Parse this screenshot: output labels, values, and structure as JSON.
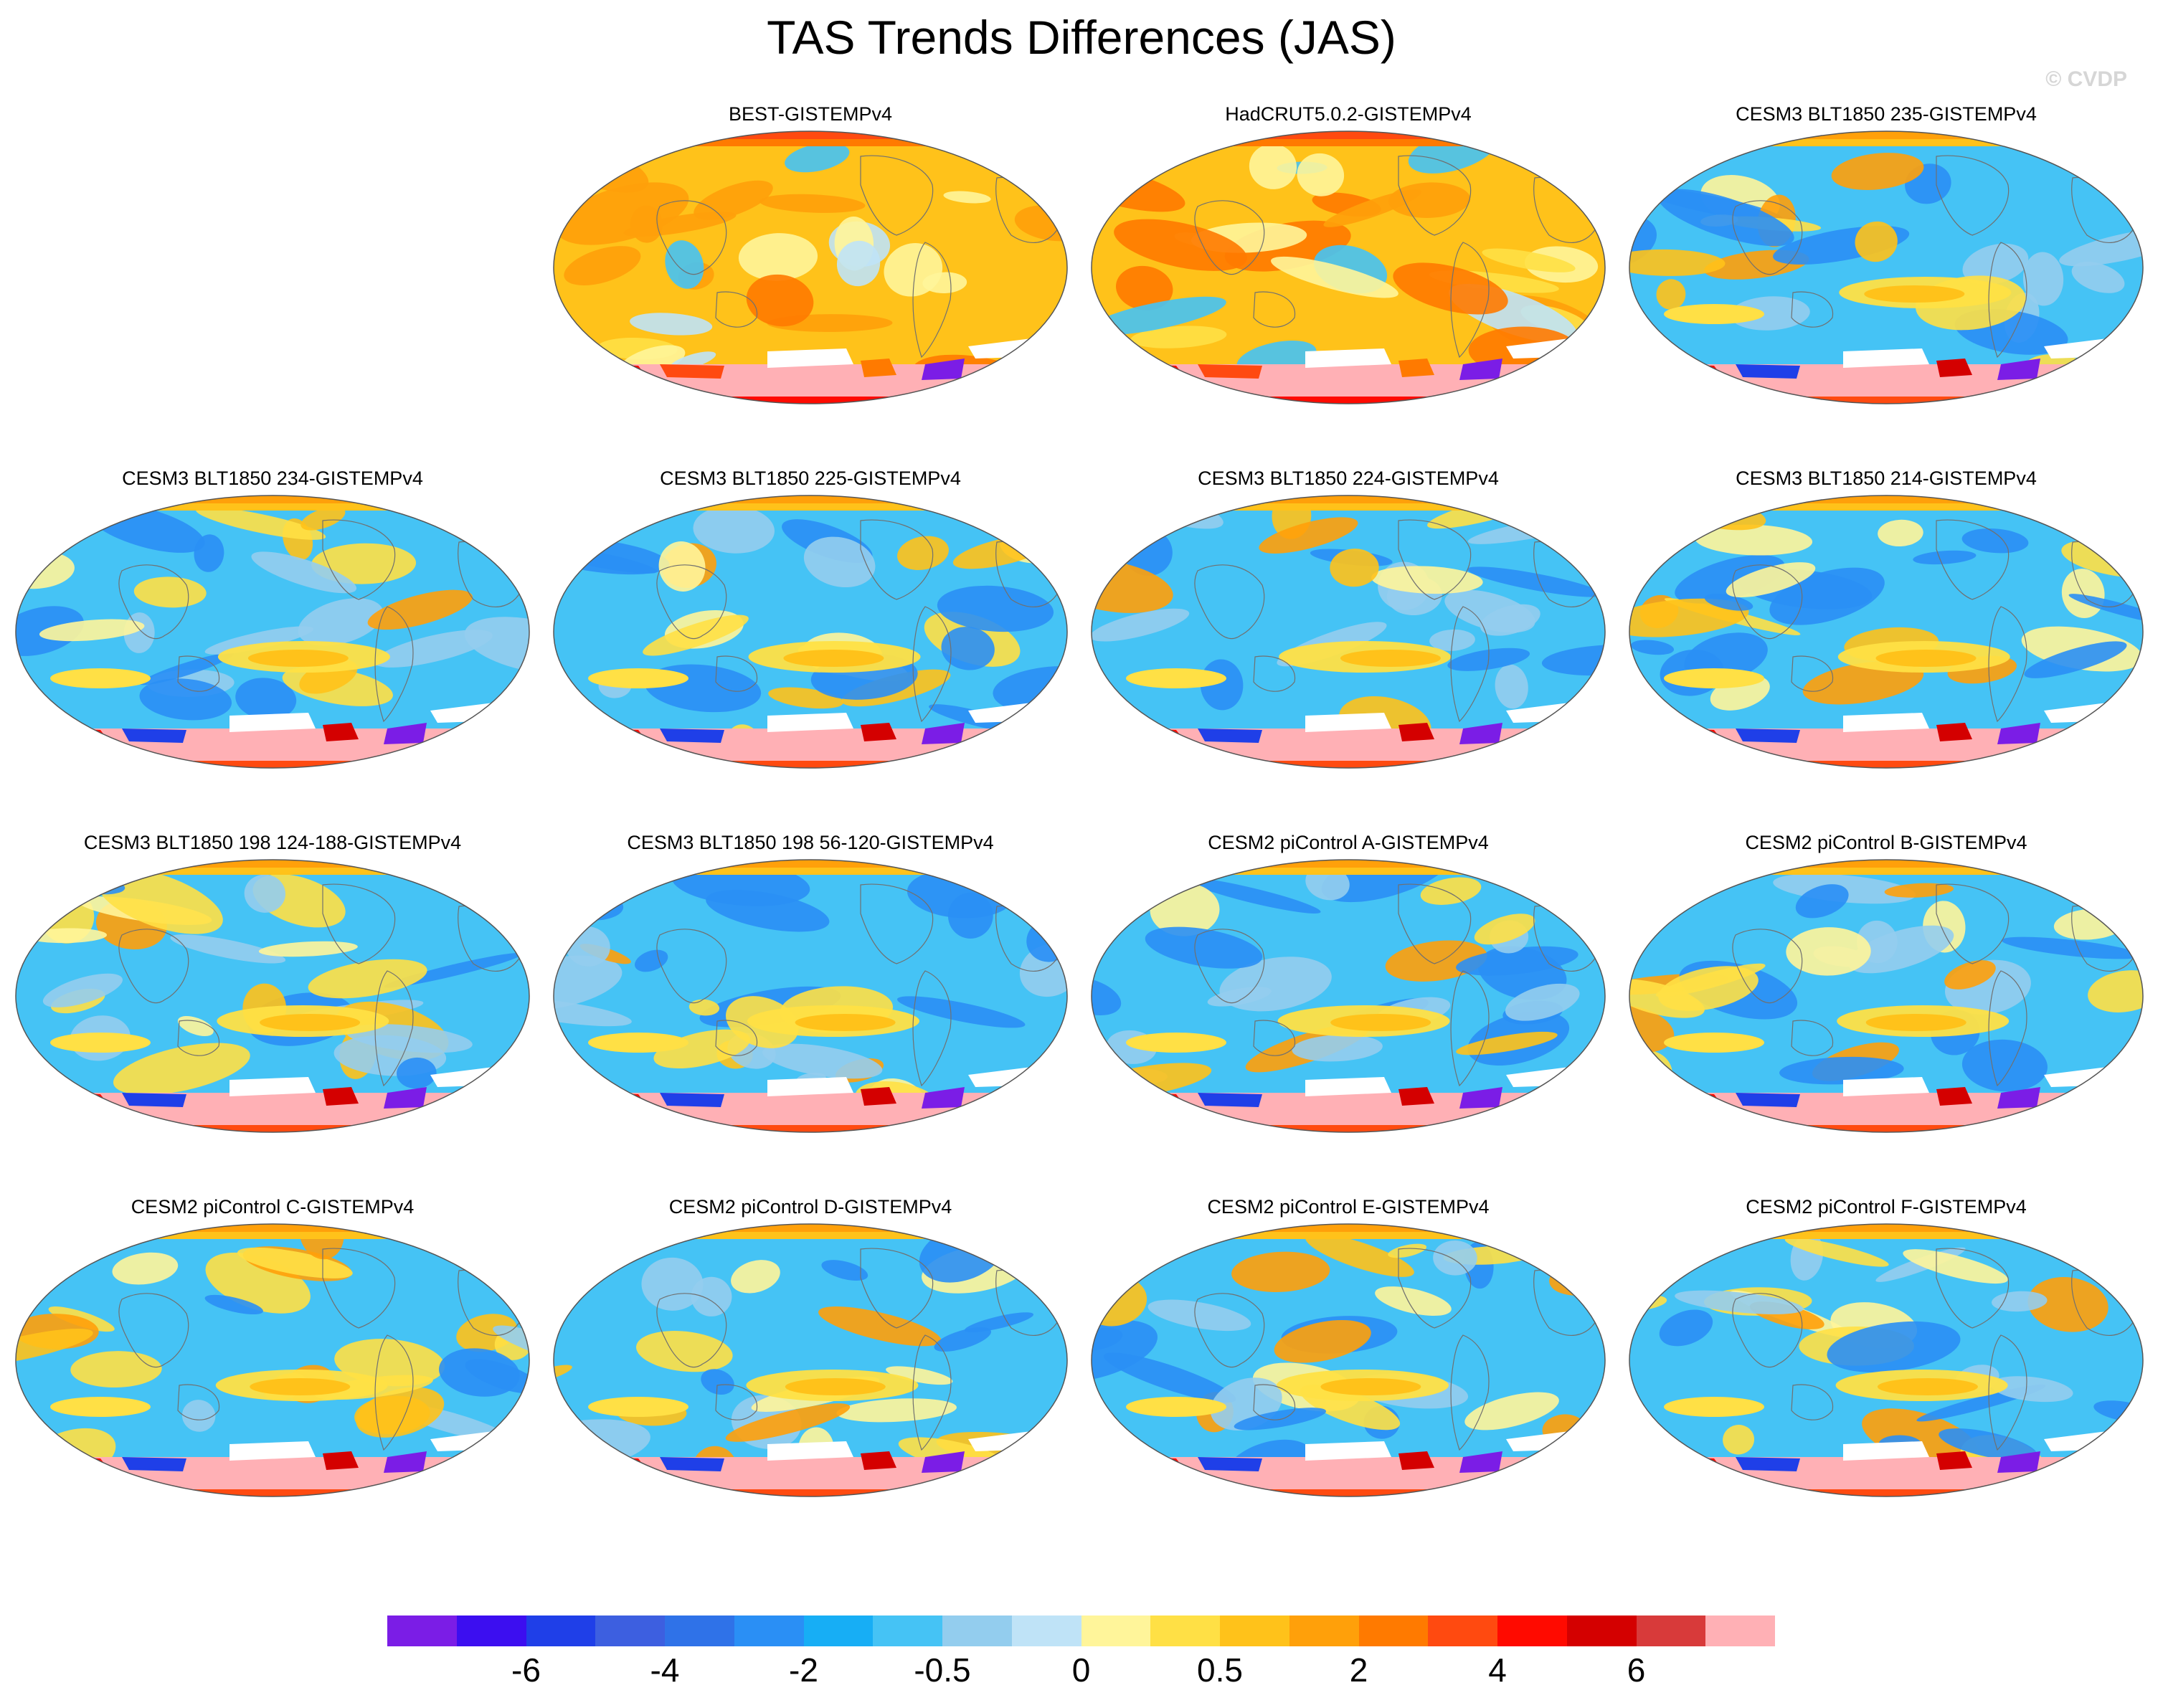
{
  "figure": {
    "title": "TAS Trends Differences (JAS)",
    "copyright": "© CVDP"
  },
  "panels": [
    {
      "label": "BEST-GISTEMPv4",
      "row": 0,
      "col": 1,
      "style": "obs"
    },
    {
      "label": "HadCRUT5.0.2-GISTEMPv4",
      "row": 0,
      "col": 2,
      "style": "obs"
    },
    {
      "label": "CESM3 BLT1850 235-GISTEMPv4",
      "row": 0,
      "col": 3,
      "style": "model"
    },
    {
      "label": "CESM3 BLT1850 234-GISTEMPv4",
      "row": 1,
      "col": 0,
      "style": "model"
    },
    {
      "label": "CESM3 BLT1850 225-GISTEMPv4",
      "row": 1,
      "col": 1,
      "style": "model"
    },
    {
      "label": "CESM3 BLT1850 224-GISTEMPv4",
      "row": 1,
      "col": 2,
      "style": "model"
    },
    {
      "label": "CESM3 BLT1850 214-GISTEMPv4",
      "row": 1,
      "col": 3,
      "style": "model"
    },
    {
      "label": "CESM3 BLT1850 198 124-188-GISTEMPv4",
      "row": 2,
      "col": 0,
      "style": "model"
    },
    {
      "label": "CESM3 BLT1850 198 56-120-GISTEMPv4",
      "row": 2,
      "col": 1,
      "style": "model"
    },
    {
      "label": "CESM2 piControl A-GISTEMPv4",
      "row": 2,
      "col": 2,
      "style": "model"
    },
    {
      "label": "CESM2 piControl B-GISTEMPv4",
      "row": 2,
      "col": 3,
      "style": "model"
    },
    {
      "label": "CESM2 piControl C-GISTEMPv4",
      "row": 3,
      "col": 0,
      "style": "model"
    },
    {
      "label": "CESM2 piControl D-GISTEMPv4",
      "row": 3,
      "col": 1,
      "style": "model"
    },
    {
      "label": "CESM2 piControl E-GISTEMPv4",
      "row": 3,
      "col": 2,
      "style": "model"
    },
    {
      "label": "CESM2 piControl F-GISTEMPv4",
      "row": 3,
      "col": 3,
      "style": "model"
    }
  ],
  "colorbar": {
    "colors": [
      "#7b1de6",
      "#3c0ef0",
      "#1f3fe8",
      "#3d5fe0",
      "#2f72e8",
      "#2a8ff5",
      "#17aef5",
      "#45c3f5",
      "#93cdee",
      "#bfe3f7",
      "#fff59a",
      "#ffe045",
      "#ffc21a",
      "#ffa00a",
      "#ff7a00",
      "#ff4a10",
      "#ff0a00",
      "#d40000",
      "#d83a3a",
      "#ffb0b5"
    ],
    "labels": [
      {
        "text": "-6",
        "boundary": 2
      },
      {
        "text": "-4",
        "boundary": 4
      },
      {
        "text": "-2",
        "boundary": 6
      },
      {
        "text": "-0.5",
        "boundary": 8
      },
      {
        "text": "0",
        "boundary": 10
      },
      {
        "text": "0.5",
        "boundary": 12
      },
      {
        "text": "2",
        "boundary": 14
      },
      {
        "text": "4",
        "boundary": 16
      },
      {
        "text": "6",
        "boundary": 18
      }
    ]
  }
}
